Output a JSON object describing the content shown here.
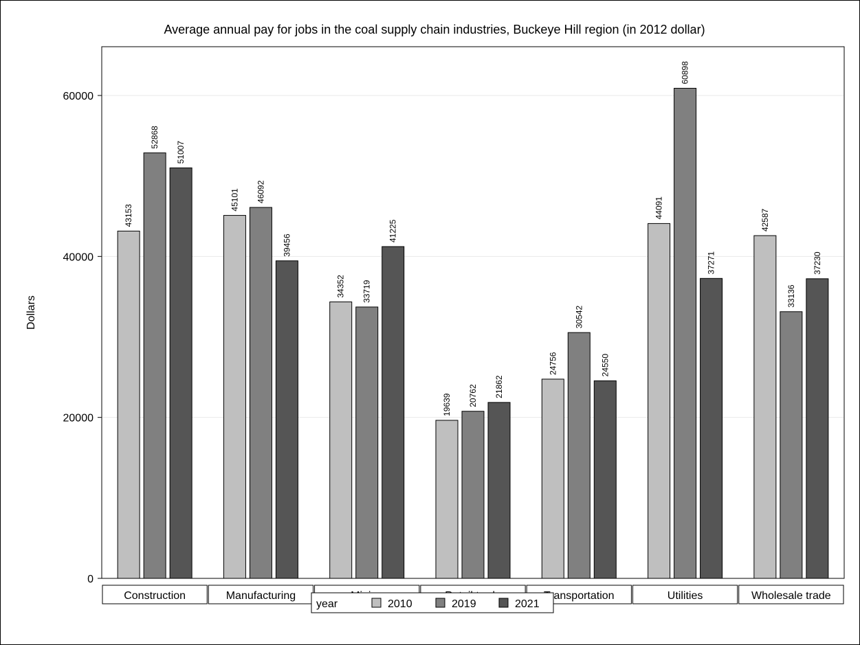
{
  "chart_data": {
    "type": "bar",
    "title": "Average annual pay for jobs in the coal supply chain industries, Buckeye Hill region (in 2012 dollar)",
    "xlabel": "",
    "ylabel": "Dollars",
    "ylim": [
      0,
      66000
    ],
    "yticks": [
      0,
      20000,
      40000,
      60000
    ],
    "grid": true,
    "legend_placement": "bottom",
    "legend_title": "year",
    "categories": [
      "Construction",
      "Manufacturing",
      "Mining",
      "Retail trade",
      "Transportation",
      "Utilities",
      "Wholesale trade"
    ],
    "series": [
      {
        "name": "2010",
        "color": "#bfbfbf",
        "values": [
          43153,
          45101,
          34352,
          19639,
          24756,
          44091,
          42587
        ]
      },
      {
        "name": "2019",
        "color": "#808080",
        "values": [
          52868,
          46092,
          33719,
          20762,
          30542,
          60898,
          33136
        ]
      },
      {
        "name": "2021",
        "color": "#555555",
        "values": [
          51007,
          39456,
          41225,
          21862,
          24550,
          37271,
          37230
        ]
      }
    ]
  }
}
